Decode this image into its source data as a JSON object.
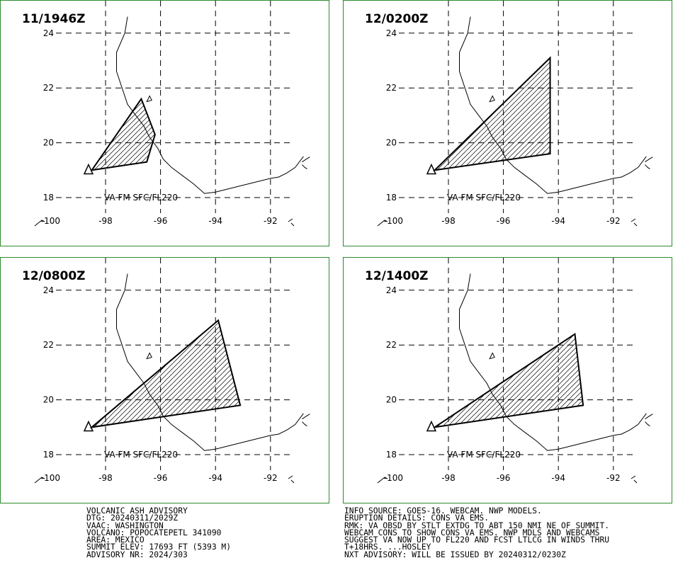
{
  "panels": [
    {
      "time": "11/1946Z",
      "level_label": "VA FM SFC/FL220",
      "polygon": [
        [
          -98.5,
          19.0
        ],
        [
          -96.7,
          21.6
        ],
        [
          -96.2,
          20.3
        ],
        [
          -96.5,
          19.3
        ]
      ]
    },
    {
      "time": "12/0200Z",
      "level_label": "VA FM SFC/FL220",
      "polygon": [
        [
          -98.5,
          19.0
        ],
        [
          -94.3,
          23.1
        ],
        [
          -94.3,
          19.6
        ]
      ]
    },
    {
      "time": "12/0800Z",
      "level_label": "VA FM SFC/FL220",
      "polygon": [
        [
          -98.5,
          19.0
        ],
        [
          -93.9,
          22.9
        ],
        [
          -93.1,
          19.8
        ]
      ]
    },
    {
      "time": "12/1400Z",
      "level_label": "VA FM SFC/FL220",
      "polygon": [
        [
          -98.5,
          19.0
        ],
        [
          -93.4,
          22.4
        ],
        [
          -93.1,
          19.8
        ]
      ]
    }
  ],
  "map": {
    "lat_labels": [
      "18",
      "20",
      "22",
      "24"
    ],
    "lon_labels": [
      "-100",
      "-98",
      "-96",
      "-94",
      "-92"
    ],
    "volcano": {
      "lon": -98.62,
      "lat": 19.02
    }
  },
  "advisory_left": [
    "VOLCANIC ASH ADVISORY",
    "DTG: 20240311/2029Z",
    "VAAC: WASHINGTON",
    "VOLCANO: POPOCATEPETL 341090",
    "AREA: MEXICO",
    "SUMMIT ELEV: 17693 FT (5393 M)",
    "ADVISORY NR: 2024/303"
  ],
  "advisory_right": [
    "INFO SOURCE: GOES-16. WEBCAM. NWP MODELS.",
    "ERUPTION DETAILS: CONS VA EMS.",
    "RMK: VA OBSD BY STLT EXTDG TO ABT 150 NMI NE OF SUMMIT.",
    "WEBCAM CONS TO SHOW CONS VA EMS. NWP MDLS AND WEBCAMS",
    "SUGGEST VA NOW UP TO FL220 AND FCST LTLCG IN WINDS THRU",
    "T+18HRS. ...HOSLEY",
    "NXT ADVISORY: WILL BE ISSUED BY 20240312/0230Z"
  ]
}
